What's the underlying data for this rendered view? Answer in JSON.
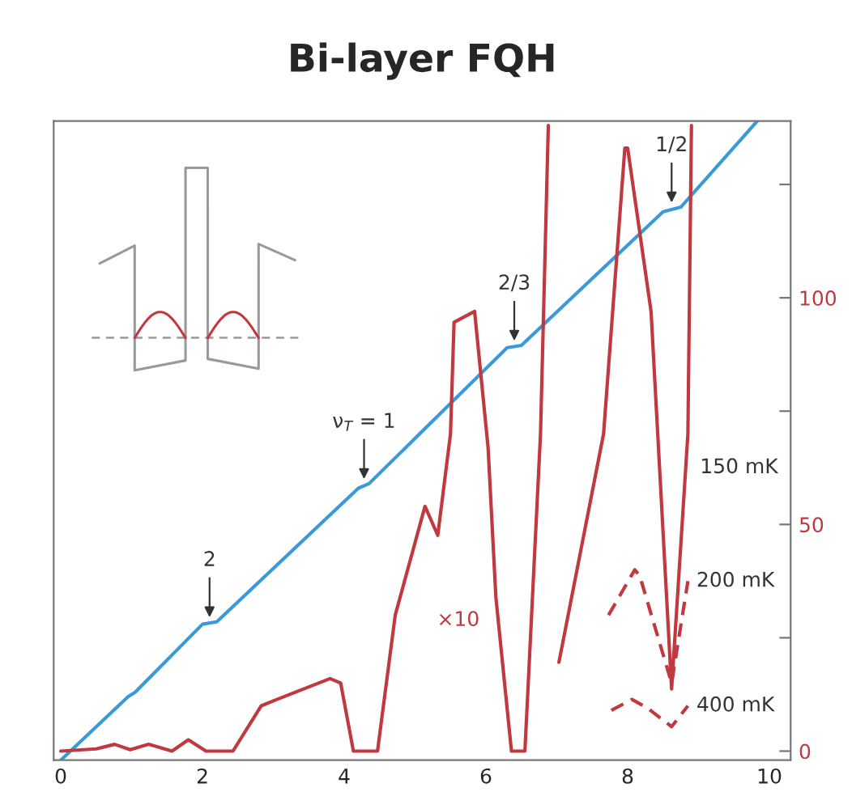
{
  "chart_data": {
    "type": "line",
    "title": "Bi-layer FQH",
    "xlim": [
      -0.1,
      10.3
    ],
    "xticks": [
      0,
      2,
      4,
      6,
      8,
      10
    ],
    "ylim": [
      -2,
      139
    ],
    "yticks": [
      0,
      {
        "value": 25,
        "label": null
      },
      50,
      {
        "value": 75,
        "label": null
      },
      100,
      {
        "value": 125,
        "label": null
      }
    ],
    "grid": false,
    "legend": false,
    "marker": "none",
    "series": [
      {
        "color": "#3a9ad9",
        "line_style": "solid",
        "x": [
          0,
          0.95,
          1.05,
          2.0,
          2.2,
          4.2,
          4.35,
          6.3,
          6.5,
          8.5,
          8.75,
          9.83
        ],
        "values": [
          -2,
          12,
          13,
          28,
          28.5,
          58,
          59,
          89,
          89.5,
          119,
          120,
          139
        ]
      },
      {
        "name": "150 mK",
        "color": "#c0393f",
        "line_style": "solid",
        "x": [
          0,
          0.5,
          0.76,
          0.98,
          1.24,
          1.57,
          1.8,
          2.05,
          2.43,
          2.83,
          3.05,
          3.8,
          3.95,
          4.13,
          4.47,
          4.72,
          5.14,
          5.32,
          5.5,
          5.55,
          5.84,
          6.03,
          6.14,
          6.36,
          6.55,
          6.77,
          6.88,
          6.95,
          7.03,
          7.66,
          7.96,
          8.0,
          8.33,
          8.62,
          8.85,
          8.9
        ],
        "values": [
          0,
          0.5,
          1.5,
          0.3,
          1.5,
          0,
          2.5,
          0,
          0,
          10,
          11.4,
          16,
          15,
          0,
          0,
          30,
          54,
          47.6,
          70,
          94.6,
          97,
          67,
          34,
          0,
          0,
          70,
          138,
          null,
          19.6,
          70,
          133,
          133,
          97,
          13.7,
          70,
          138
        ]
      },
      {
        "name": "200 mK",
        "color": "#c0393f",
        "line_style": "dashed",
        "x": [
          7.73,
          8.1,
          8.17,
          8.62,
          8.85
        ],
        "values": [
          30,
          40,
          38.7,
          15,
          37.5
        ]
      },
      {
        "name": "400 mK",
        "color": "#c0393f",
        "line_style": "dashed",
        "x": [
          7.77,
          8.06,
          8.27,
          8.62,
          8.85
        ],
        "values": [
          9,
          11.4,
          9.6,
          5.4,
          10
        ]
      }
    ],
    "annotations": [
      {
        "text": "2",
        "x": 2.1,
        "y": 28.5
      },
      {
        "text": "ν$_{T}$ = 1",
        "x": 4.28,
        "y": 59
      },
      {
        "text": "2/3",
        "x": 6.4,
        "y": 89.5
      },
      {
        "text": "1/2",
        "x": 8.62,
        "y": 120
      },
      "×10"
    ]
  }
}
